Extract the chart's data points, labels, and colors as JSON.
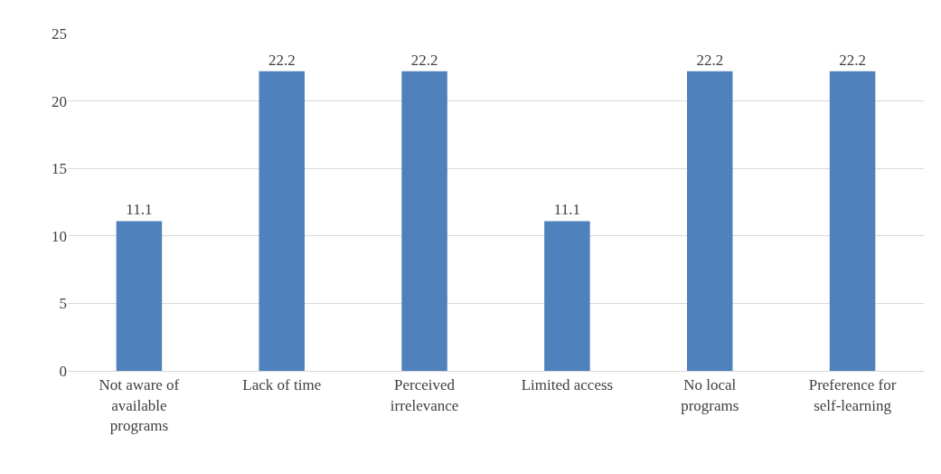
{
  "chart_data": {
    "type": "bar",
    "categories": [
      "Not aware of available programs",
      "Lack of time",
      "Perceived irrelevance",
      "Limited access",
      "No local programs",
      "Preference for self-learning"
    ],
    "values": [
      11.1,
      22.2,
      22.2,
      11.1,
      22.2,
      22.2
    ],
    "color": "#4f81bd",
    "data_labels": true,
    "ylim": [
      0,
      25
    ],
    "yticks": [
      0,
      5,
      10,
      15,
      20,
      25
    ],
    "grid": "y",
    "legend": false
  }
}
